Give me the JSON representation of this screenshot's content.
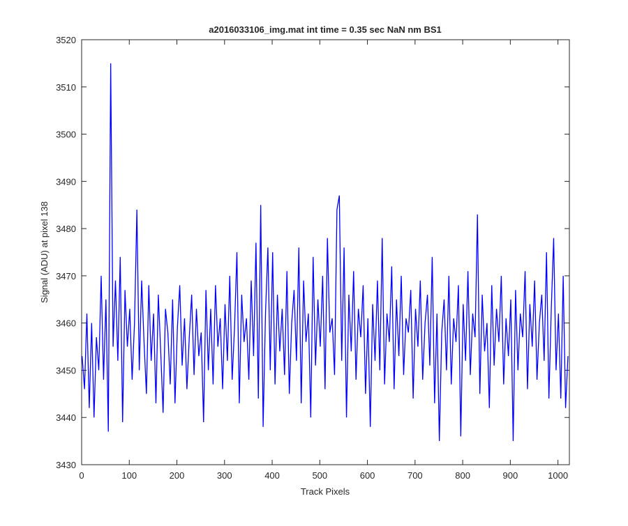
{
  "chart_data": {
    "type": "line",
    "title": "a2016033106_img.mat int time = 0.35 sec  NaN nm BS1",
    "x_label": "Track Pixels",
    "y_label": "Signal (ADU) at pixel 138",
    "xlim": [
      0,
      1024
    ],
    "ylim": [
      3430,
      3520
    ],
    "xticks": [
      0,
      100,
      200,
      300,
      400,
      500,
      600,
      700,
      800,
      900,
      1000
    ],
    "yticks": [
      3430,
      3440,
      3450,
      3460,
      3470,
      3480,
      3490,
      3500,
      3510,
      3520
    ],
    "x": [
      1,
      6,
      11,
      16,
      21,
      26,
      31,
      36,
      41,
      46,
      51,
      56,
      61,
      66,
      71,
      76,
      81,
      86,
      91,
      96,
      101,
      106,
      111,
      116,
      121,
      126,
      131,
      136,
      141,
      146,
      151,
      156,
      161,
      166,
      171,
      176,
      181,
      186,
      191,
      196,
      201,
      206,
      211,
      216,
      221,
      226,
      231,
      236,
      241,
      246,
      251,
      256,
      261,
      266,
      271,
      276,
      281,
      286,
      291,
      296,
      301,
      306,
      311,
      316,
      321,
      326,
      331,
      336,
      341,
      346,
      351,
      356,
      361,
      366,
      371,
      376,
      381,
      386,
      391,
      396,
      401,
      406,
      411,
      416,
      421,
      426,
      431,
      436,
      441,
      446,
      451,
      456,
      461,
      466,
      471,
      476,
      481,
      486,
      491,
      496,
      501,
      506,
      511,
      516,
      521,
      526,
      531,
      536,
      541,
      546,
      551,
      556,
      561,
      566,
      571,
      576,
      581,
      586,
      591,
      596,
      601,
      606,
      611,
      616,
      621,
      626,
      631,
      636,
      641,
      646,
      651,
      656,
      661,
      666,
      671,
      676,
      681,
      686,
      691,
      696,
      701,
      706,
      711,
      716,
      721,
      726,
      731,
      736,
      741,
      746,
      751,
      756,
      761,
      766,
      771,
      776,
      781,
      786,
      791,
      796,
      801,
      806,
      811,
      816,
      821,
      826,
      831,
      836,
      841,
      846,
      851,
      856,
      861,
      866,
      871,
      876,
      881,
      886,
      891,
      896,
      901,
      906,
      911,
      916,
      921,
      926,
      931,
      936,
      941,
      946,
      951,
      956,
      961,
      966,
      971,
      976,
      981,
      986,
      991,
      996,
      1001,
      1006,
      1011,
      1016,
      1021
    ],
    "series": [
      {
        "color": "#0000ff",
        "values": [
          3453,
          3446,
          3462,
          3442,
          3460,
          3440,
          3457,
          3450,
          3470,
          3448,
          3465,
          3437,
          3515,
          3455,
          3469,
          3452,
          3474,
          3439,
          3467,
          3455,
          3463,
          3448,
          3460,
          3484,
          3450,
          3469,
          3456,
          3445,
          3468,
          3452,
          3462,
          3443,
          3466,
          3454,
          3441,
          3463,
          3458,
          3447,
          3465,
          3443,
          3459,
          3468,
          3451,
          3461,
          3446,
          3457,
          3466,
          3449,
          3463,
          3453,
          3458,
          3439,
          3467,
          3450,
          3463,
          3447,
          3468,
          3455,
          3461,
          3446,
          3464,
          3452,
          3470,
          3448,
          3459,
          3475,
          3443,
          3466,
          3456,
          3461,
          3448,
          3469,
          3453,
          3477,
          3444,
          3485,
          3438,
          3462,
          3476,
          3450,
          3475,
          3447,
          3466,
          3454,
          3463,
          3449,
          3471,
          3445,
          3460,
          3467,
          3452,
          3476,
          3443,
          3469,
          3456,
          3462,
          3440,
          3474,
          3451,
          3465,
          3455,
          3470,
          3446,
          3478,
          3458,
          3461,
          3449,
          3484,
          3487,
          3452,
          3476,
          3440,
          3466,
          3454,
          3471,
          3448,
          3463,
          3457,
          3468,
          3445,
          3461,
          3438,
          3464,
          3452,
          3469,
          3450,
          3478,
          3447,
          3462,
          3456,
          3472,
          3446,
          3465,
          3453,
          3470,
          3449,
          3461,
          3458,
          3467,
          3444,
          3463,
          3455,
          3469,
          3448,
          3460,
          3466,
          3451,
          3474,
          3443,
          3462,
          3435,
          3458,
          3465,
          3450,
          3470,
          3447,
          3461,
          3456,
          3468,
          3436,
          3464,
          3452,
          3471,
          3449,
          3462,
          3457,
          3483,
          3445,
          3466,
          3454,
          3460,
          3442,
          3468,
          3451,
          3463,
          3456,
          3470,
          3447,
          3461,
          3453,
          3465,
          3435,
          3467,
          3450,
          3462,
          3457,
          3471,
          3446,
          3464,
          3455,
          3469,
          3448,
          3460,
          3466,
          3452,
          3475,
          3444,
          3463,
          3478,
          3450,
          3462,
          3444,
          3470,
          3442,
          3453
        ]
      }
    ]
  }
}
